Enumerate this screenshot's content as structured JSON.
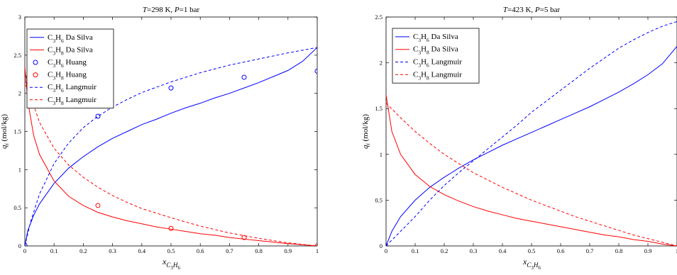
{
  "chart_data": [
    {
      "type": "line",
      "title_parts": [
        "T",
        "=298 K,  ",
        "P",
        "=1 bar"
      ],
      "xlabel": "x_{C_3H_6}",
      "ylabel": "q_i (mol/kg)",
      "xlim": [
        0,
        1
      ],
      "ylim": [
        0,
        3
      ],
      "xticks": [
        "0",
        "0.1",
        "0.2",
        "0.3",
        "0.4",
        "0.5",
        "0.6",
        "0.7",
        "0.8",
        "0.9",
        "1"
      ],
      "yticks": [
        "0",
        "0.5",
        "1",
        "1.5",
        "2",
        "2.5",
        "3"
      ],
      "grid": false,
      "legend_position": "top-left",
      "colors": {
        "propene": "#0000ff",
        "propane": "#ff0000"
      },
      "series": [
        {
          "name": "C3H6 Da Silva",
          "label": [
            "C",
            "3",
            "H",
            "6",
            " Da Silva"
          ],
          "color": "#0000ff",
          "style": "solid",
          "x": [
            0,
            0.01,
            0.03,
            0.05,
            0.1,
            0.15,
            0.2,
            0.25,
            0.3,
            0.35,
            0.4,
            0.45,
            0.5,
            0.55,
            0.6,
            0.65,
            0.7,
            0.75,
            0.8,
            0.85,
            0.9,
            0.95,
            1
          ],
          "y": [
            0,
            0.2,
            0.4,
            0.55,
            0.82,
            1.02,
            1.17,
            1.3,
            1.41,
            1.5,
            1.59,
            1.66,
            1.74,
            1.81,
            1.87,
            1.94,
            2.0,
            2.07,
            2.14,
            2.22,
            2.3,
            2.42,
            2.6
          ]
        },
        {
          "name": "C3H8 Da Silva",
          "label": [
            "C",
            "3",
            "H",
            "8",
            " Da Silva"
          ],
          "color": "#ff0000",
          "style": "solid",
          "x": [
            0,
            0.01,
            0.03,
            0.05,
            0.1,
            0.15,
            0.2,
            0.25,
            0.3,
            0.35,
            0.4,
            0.45,
            0.5,
            0.55,
            0.6,
            0.65,
            0.7,
            0.75,
            0.8,
            0.85,
            0.9,
            0.95,
            1
          ],
          "y": [
            2.35,
            1.9,
            1.45,
            1.2,
            0.85,
            0.65,
            0.53,
            0.44,
            0.38,
            0.33,
            0.29,
            0.25,
            0.22,
            0.19,
            0.16,
            0.14,
            0.11,
            0.09,
            0.07,
            0.05,
            0.03,
            0.015,
            0
          ]
        },
        {
          "name": "C3H6 Huang",
          "label": [
            "C",
            "3",
            "H",
            "6",
            " Huang"
          ],
          "color": "#0000ff",
          "style": "marker",
          "x": [
            0,
            0.25,
            0.5,
            0.75,
            1
          ],
          "y": [
            0.01,
            1.7,
            2.07,
            2.21,
            2.29
          ]
        },
        {
          "name": "C3H8 Huang",
          "label": [
            "C",
            "3",
            "H",
            "8",
            " Huang"
          ],
          "color": "#ff0000",
          "style": "marker",
          "x": [
            0,
            0.25,
            0.5,
            0.75,
            1
          ],
          "y": [
            2.12,
            0.53,
            0.23,
            0.11,
            0
          ]
        },
        {
          "name": "C3H6 Langmuir",
          "label": [
            "C",
            "3",
            "H",
            "6",
            " Langmuir"
          ],
          "color": "#0000ff",
          "style": "dashed",
          "x": [
            0,
            0.02,
            0.05,
            0.1,
            0.15,
            0.2,
            0.25,
            0.3,
            0.35,
            0.4,
            0.5,
            0.6,
            0.7,
            0.8,
            0.9,
            1
          ],
          "y": [
            0,
            0.32,
            0.68,
            1.08,
            1.35,
            1.55,
            1.7,
            1.82,
            1.92,
            2.01,
            2.15,
            2.27,
            2.37,
            2.45,
            2.53,
            2.6
          ]
        },
        {
          "name": "C3H8 Langmuir",
          "label": [
            "C",
            "3",
            "H",
            "8",
            " Langmuir"
          ],
          "color": "#ff0000",
          "style": "dashed",
          "x": [
            0,
            0.02,
            0.05,
            0.1,
            0.15,
            0.2,
            0.25,
            0.3,
            0.35,
            0.4,
            0.5,
            0.6,
            0.7,
            0.8,
            0.9,
            1
          ],
          "y": [
            2.3,
            1.96,
            1.62,
            1.28,
            1.06,
            0.9,
            0.77,
            0.66,
            0.57,
            0.49,
            0.37,
            0.26,
            0.17,
            0.1,
            0.04,
            0
          ]
        }
      ]
    },
    {
      "type": "line",
      "title_parts": [
        "T",
        "=423 K,  ",
        "P",
        "=5 bar"
      ],
      "xlabel": "x_{C_3H_6}",
      "ylabel": "q_i (mol/kg)",
      "xlim": [
        0,
        1
      ],
      "ylim": [
        0,
        2.5
      ],
      "xticks": [
        "0",
        "0.1",
        "0.2",
        "0.3",
        "0.4",
        "0.5",
        "0.6",
        "0.7",
        "0.8",
        "0.9",
        "1"
      ],
      "yticks": [
        "0",
        "0.5",
        "1",
        "1.5",
        "2",
        "2.5"
      ],
      "grid": false,
      "legend_position": "top-left",
      "colors": {
        "propene": "#0000ff",
        "propane": "#ff0000"
      },
      "series": [
        {
          "name": "C3H6 Da Silva",
          "label": [
            "C",
            "3",
            "H",
            "6",
            " Da Silva"
          ],
          "color": "#0000ff",
          "style": "solid",
          "x": [
            0,
            0.02,
            0.05,
            0.1,
            0.15,
            0.2,
            0.25,
            0.3,
            0.35,
            0.4,
            0.45,
            0.5,
            0.55,
            0.6,
            0.65,
            0.7,
            0.75,
            0.8,
            0.85,
            0.9,
            0.95,
            1
          ],
          "y": [
            0,
            0.16,
            0.32,
            0.5,
            0.64,
            0.75,
            0.85,
            0.94,
            1.02,
            1.1,
            1.17,
            1.24,
            1.31,
            1.38,
            1.45,
            1.52,
            1.6,
            1.68,
            1.77,
            1.87,
            1.99,
            2.18
          ]
        },
        {
          "name": "C3H8 Da Silva",
          "label": [
            "C",
            "3",
            "H",
            "8",
            " Da Silva"
          ],
          "color": "#ff0000",
          "style": "solid",
          "x": [
            0,
            0.02,
            0.05,
            0.1,
            0.15,
            0.2,
            0.25,
            0.3,
            0.35,
            0.4,
            0.45,
            0.5,
            0.55,
            0.6,
            0.65,
            0.7,
            0.75,
            0.8,
            0.85,
            0.9,
            0.95,
            1
          ],
          "y": [
            1.65,
            1.25,
            1.0,
            0.78,
            0.65,
            0.56,
            0.49,
            0.43,
            0.38,
            0.34,
            0.3,
            0.27,
            0.24,
            0.21,
            0.18,
            0.15,
            0.12,
            0.1,
            0.07,
            0.05,
            0.02,
            0
          ]
        },
        {
          "name": "C3H6 Langmuir",
          "label": [
            "C",
            "3",
            "H",
            "6",
            " Langmuir"
          ],
          "color": "#0000ff",
          "style": "dashed",
          "x": [
            0,
            0.05,
            0.1,
            0.15,
            0.2,
            0.25,
            0.3,
            0.35,
            0.4,
            0.45,
            0.5,
            0.55,
            0.6,
            0.65,
            0.7,
            0.75,
            0.8,
            0.85,
            0.9,
            0.95,
            1
          ],
          "y": [
            0,
            0.16,
            0.32,
            0.5,
            0.66,
            0.8,
            0.93,
            1.06,
            1.19,
            1.32,
            1.46,
            1.58,
            1.7,
            1.82,
            1.94,
            2.05,
            2.16,
            2.25,
            2.33,
            2.4,
            2.45
          ]
        },
        {
          "name": "C3H8 Langmuir",
          "label": [
            "C",
            "3",
            "H",
            "8",
            " Langmuir"
          ],
          "color": "#ff0000",
          "style": "dashed",
          "x": [
            0,
            0.05,
            0.1,
            0.15,
            0.2,
            0.25,
            0.3,
            0.35,
            0.4,
            0.45,
            0.5,
            0.55,
            0.6,
            0.65,
            0.7,
            0.75,
            0.8,
            0.85,
            0.9,
            0.95,
            1
          ],
          "y": [
            1.56,
            1.4,
            1.25,
            1.12,
            1.0,
            0.9,
            0.8,
            0.72,
            0.64,
            0.57,
            0.5,
            0.44,
            0.38,
            0.32,
            0.27,
            0.22,
            0.17,
            0.12,
            0.08,
            0.04,
            0
          ]
        }
      ]
    }
  ]
}
